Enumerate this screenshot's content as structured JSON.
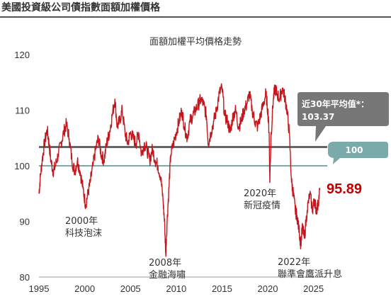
{
  "header": {
    "title": "美國投資級公司債指數面額加權價格"
  },
  "chart_data": {
    "type": "line",
    "title": "面額加權平均價格走勢",
    "xlabel": "",
    "ylabel": "",
    "xlim": [
      1995,
      2026.5
    ],
    "ylim": [
      80,
      120
    ],
    "xticks": [
      "1995",
      "2000",
      "2005",
      "2010",
      "2015",
      "2020",
      "2025"
    ],
    "yticks": [
      "80",
      "90",
      "100",
      "110",
      "120"
    ],
    "grid": false,
    "colors": {
      "series": "#c4161c",
      "average": "#666666",
      "par": "#7aaaaa",
      "last": "#c00000"
    },
    "series": [
      {
        "name": "",
        "x": [
          1995.0,
          1995.15,
          1995.35,
          1995.6,
          1995.9,
          1996.1,
          1996.3,
          1996.55,
          1996.8,
          1997.1,
          1997.4,
          1997.7,
          1998.0,
          1998.3,
          1998.6,
          1998.9,
          1999.2,
          1999.5,
          1999.8,
          2000.1,
          2000.35,
          2000.6,
          2000.9,
          2001.2,
          2001.5,
          2001.8,
          2002.1,
          2002.4,
          2002.7,
          2003.0,
          2003.3,
          2003.55,
          2003.8,
          2004.1,
          2004.4,
          2004.7,
          2005.0,
          2005.3,
          2005.6,
          2005.9,
          2006.2,
          2006.5,
          2006.8,
          2007.1,
          2007.4,
          2007.7,
          2008.0,
          2008.3,
          2008.55,
          2008.75,
          2008.85,
          2009.0,
          2009.2,
          2009.4,
          2009.7,
          2010.0,
          2010.3,
          2010.6,
          2010.9,
          2011.2,
          2011.5,
          2011.8,
          2012.1,
          2012.4,
          2012.7,
          2013.0,
          2013.3,
          2013.5,
          2013.8,
          2014.1,
          2014.4,
          2014.7,
          2015.0,
          2015.3,
          2015.6,
          2015.9,
          2016.2,
          2016.5,
          2016.8,
          2017.1,
          2017.4,
          2017.7,
          2018.0,
          2018.3,
          2018.6,
          2018.9,
          2019.2,
          2019.5,
          2019.8,
          2020.0,
          2020.15,
          2020.22,
          2020.35,
          2020.6,
          2020.8,
          2021.0,
          2021.3,
          2021.6,
          2021.9,
          2022.1,
          2022.35,
          2022.6,
          2022.8,
          2023.0,
          2023.2,
          2023.45,
          2023.6,
          2023.8,
          2024.0,
          2024.3,
          2024.6,
          2024.9,
          2025.1,
          2025.3,
          2025.5,
          2025.7
        ],
        "y": [
          95,
          98,
          101,
          104,
          106.5,
          104,
          101,
          99,
          100,
          102,
          104,
          106,
          107.5,
          105,
          101,
          99,
          101,
          99,
          96,
          93,
          95,
          97,
          100,
          103,
          105,
          102,
          101,
          104,
          106,
          109,
          112,
          107,
          108,
          110,
          106,
          104,
          106,
          105,
          104,
          106,
          102,
          104,
          103,
          101,
          103,
          101,
          100,
          98,
          94,
          89,
          84,
          90,
          96,
          102,
          104,
          106,
          108,
          110,
          107,
          105,
          108,
          109,
          110,
          111,
          112,
          111,
          109,
          104,
          106,
          108,
          110,
          113,
          114,
          109,
          108,
          106,
          109,
          110,
          107,
          108,
          110,
          111,
          113,
          110,
          108,
          107,
          109,
          111,
          113,
          110,
          106,
          97,
          105,
          112,
          114,
          113,
          112,
          114,
          112,
          110,
          106,
          97,
          95,
          92,
          91,
          88,
          86,
          89,
          87,
          92,
          95,
          92,
          94,
          92,
          93,
          95.89
        ]
      }
    ],
    "reference_lines": [
      {
        "name": "近30年平均值*：",
        "value": 103.37,
        "value_label": "103.37"
      },
      {
        "name": "par",
        "value": 100,
        "value_label": "100"
      }
    ],
    "last_value_label": "95.89",
    "annotations": [
      {
        "year": "2000年",
        "event": "科技泡沫"
      },
      {
        "year": "2008年",
        "event": "金融海嘯"
      },
      {
        "year": "2020年",
        "event": "新冠疫情"
      },
      {
        "year": "2022年",
        "event": "聯準會鷹派升息"
      }
    ]
  }
}
